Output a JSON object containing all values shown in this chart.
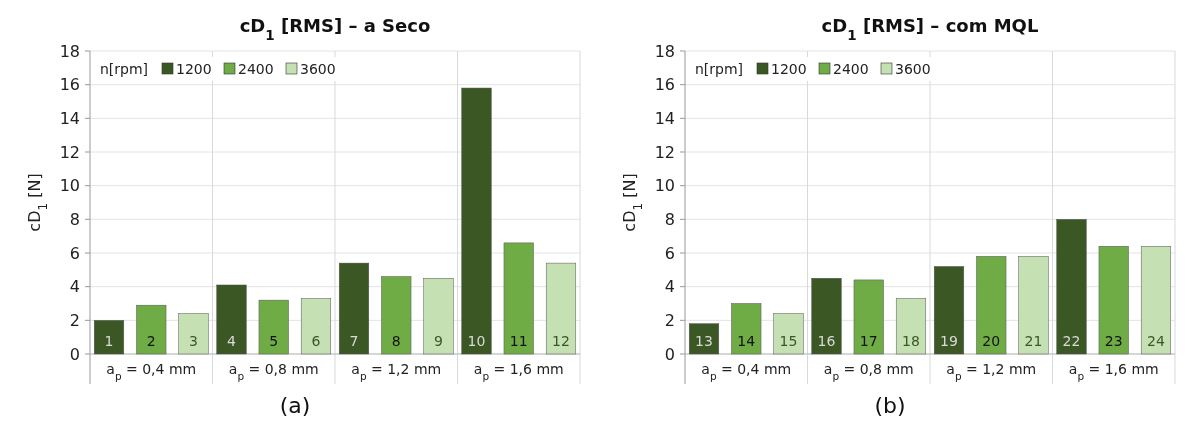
{
  "chart_data": [
    {
      "type": "bar",
      "title": "cD$_{1}$ [RMS] – a Seco",
      "ylabel": "cD$_{1}$ [N]",
      "legend_title": "n[rpm]",
      "categories": [
        "a$_{p}$ = 0,4 mm",
        "a$_{p}$ = 0,8 mm",
        "a$_{p}$ = 1,2 mm",
        "a$_{p}$ = 1,6 mm"
      ],
      "series": [
        {
          "name": "1200",
          "color": "#3b5724",
          "values": [
            2.0,
            4.1,
            5.4,
            15.8
          ]
        },
        {
          "name": "2400",
          "color": "#6fac46",
          "values": [
            2.9,
            3.2,
            4.6,
            6.6
          ]
        },
        {
          "name": "3600",
          "color": "#c5e0b3",
          "values": [
            2.4,
            3.3,
            4.5,
            5.4
          ]
        }
      ],
      "ylim": [
        0,
        18
      ],
      "yticks": [
        0,
        2,
        4,
        6,
        8,
        10,
        12,
        14,
        16,
        18
      ],
      "grid": true,
      "legend": "top left",
      "annotations": [
        "1",
        "2",
        "3",
        "4",
        "5",
        "6",
        "7",
        "8",
        "9",
        "10",
        "11",
        "12",
        "(a)"
      ]
    },
    {
      "type": "bar",
      "title": "cD$_{1}$ [RMS] – com MQL",
      "ylabel": "cD$_{1}$ [N]",
      "legend_title": "n[rpm]",
      "categories": [
        "a$_{p}$ = 0,4 mm",
        "a$_{p}$ = 0,8 mm",
        "a$_{p}$ = 1,2 mm",
        "a$_{p}$ = 1,6 mm"
      ],
      "series": [
        {
          "name": "1200",
          "color": "#3b5724",
          "values": [
            1.8,
            4.5,
            5.2,
            8.0
          ]
        },
        {
          "name": "2400",
          "color": "#6fac46",
          "values": [
            3.0,
            4.4,
            5.8,
            6.4
          ]
        },
        {
          "name": "3600",
          "color": "#c5e0b3",
          "values": [
            2.4,
            3.3,
            5.8,
            6.4
          ]
        }
      ],
      "ylim": [
        0,
        18
      ],
      "yticks": [
        0,
        2,
        4,
        6,
        8,
        10,
        12,
        14,
        16,
        18
      ],
      "grid": true,
      "legend": "top left",
      "annotations": [
        "13",
        "14",
        "15",
        "16",
        "17",
        "18",
        "19",
        "20",
        "21",
        "22",
        "23",
        "24",
        "(b)"
      ]
    }
  ]
}
